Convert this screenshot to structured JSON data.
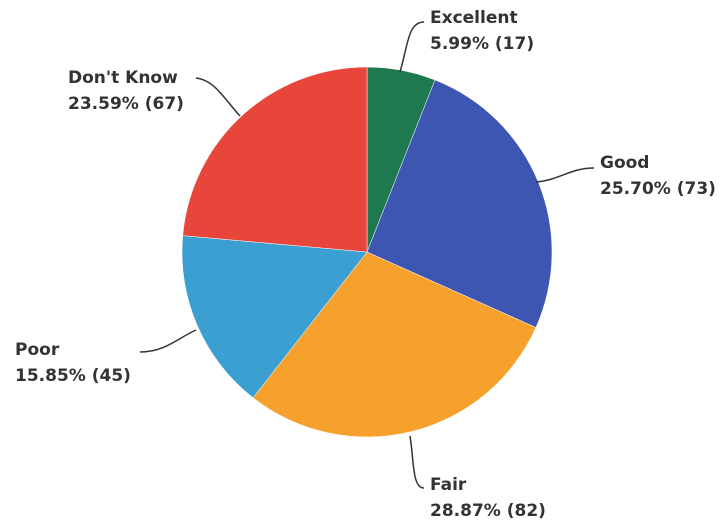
{
  "chart_data": {
    "type": "pie",
    "categories": [
      "Excellent",
      "Good",
      "Fair",
      "Poor",
      "Don't Know"
    ],
    "values": [
      5.99,
      25.7,
      28.87,
      15.85,
      23.59
    ],
    "value_labels": [
      "5.99% (17)",
      "25.70% (73)",
      "28.87% (82)",
      "15.85% (45)",
      "23.59% (67)"
    ],
    "colors": [
      "#1e7a4e",
      "#3d56b2",
      "#f5a12b",
      "#3b9fd2",
      "#e8463a"
    ]
  }
}
